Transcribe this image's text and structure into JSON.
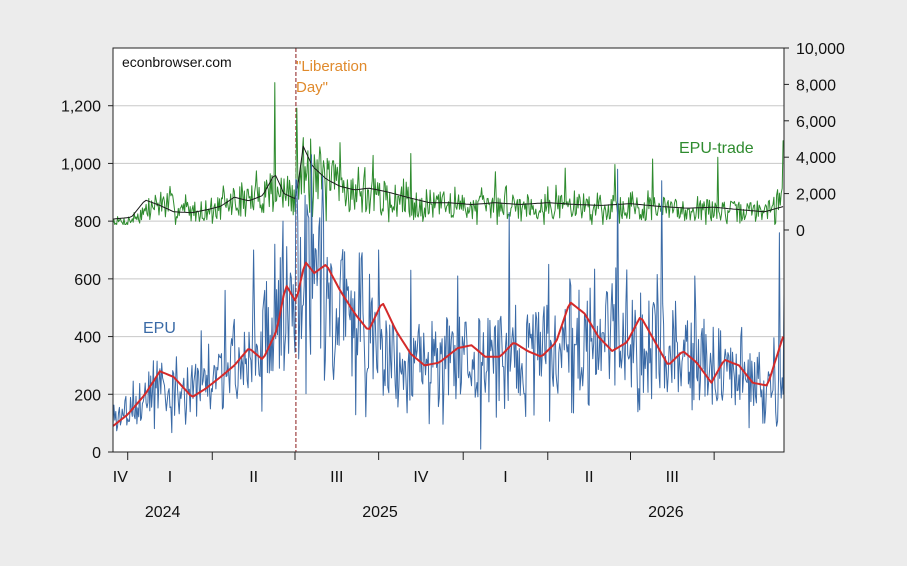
{
  "chart_data": {
    "type": "line",
    "source_label": "econbrowser.com",
    "annotation": {
      "text_line1": "\"Liberation",
      "text_line2": "Day\"",
      "date": "2025-04-02",
      "color": "#e08a2c"
    },
    "left_axis": {
      "ylim": [
        0,
        1400
      ],
      "ticks": [
        "0",
        "200",
        "400",
        "600",
        "800",
        "1,000",
        "1,200"
      ]
    },
    "right_axis": {
      "ylim": [
        -12200,
        10000
      ],
      "ticks": [
        "0",
        "2,000",
        "4,000",
        "6,000",
        "8,000",
        "10,000"
      ]
    },
    "x_axis": {
      "quarters": [
        "IV",
        "I",
        "II",
        "III",
        "IV",
        "I",
        "II",
        "III"
      ],
      "years": [
        "2024",
        "2025",
        "2026"
      ],
      "start": "2024-09-15",
      "end": "2026-09-15"
    },
    "grid": true,
    "series": [
      {
        "name": "EPU",
        "label": "EPU",
        "axis": "left",
        "color": "#3a6aa6",
        "anchors": [
          [
            "2024-09-15",
            120
          ],
          [
            "2024-10-15",
            170
          ],
          [
            "2024-11-01",
            230
          ],
          [
            "2024-11-20",
            200
          ],
          [
            "2024-12-15",
            210
          ],
          [
            "2025-01-01",
            250
          ],
          [
            "2025-01-20",
            300
          ],
          [
            "2025-02-10",
            330
          ],
          [
            "2025-03-01",
            420
          ],
          [
            "2025-03-20",
            500
          ],
          [
            "2025-04-02",
            560
          ],
          [
            "2025-04-15",
            620
          ],
          [
            "2025-05-01",
            580
          ],
          [
            "2025-05-20",
            500
          ],
          [
            "2025-06-15",
            420
          ],
          [
            "2025-07-15",
            330
          ],
          [
            "2025-08-15",
            320
          ],
          [
            "2025-09-15",
            330
          ],
          [
            "2025-10-15",
            330
          ],
          [
            "2025-11-15",
            320
          ],
          [
            "2025-12-15",
            340
          ],
          [
            "2026-01-15",
            370
          ],
          [
            "2026-02-15",
            400
          ],
          [
            "2026-03-15",
            380
          ],
          [
            "2026-04-15",
            370
          ],
          [
            "2026-05-15",
            350
          ],
          [
            "2026-06-15",
            300
          ],
          [
            "2026-07-15",
            300
          ],
          [
            "2026-08-15",
            260
          ],
          [
            "2026-09-01",
            230
          ],
          [
            "2026-09-15",
            250
          ]
        ],
        "spikes": [
          [
            "2024-12-20",
            420
          ],
          [
            "2025-01-15",
            560
          ],
          [
            "2025-02-15",
            700
          ],
          [
            "2025-03-10",
            720
          ],
          [
            "2025-04-03",
            940
          ],
          [
            "2025-04-12",
            890
          ],
          [
            "2025-05-02",
            820
          ],
          [
            "2025-06-10",
            690
          ],
          [
            "2025-07-01",
            700
          ],
          [
            "2025-08-05",
            630
          ],
          [
            "2025-09-25",
            610
          ],
          [
            "2025-11-20",
            830
          ],
          [
            "2026-01-02",
            650
          ],
          [
            "2026-01-25",
            600
          ],
          [
            "2026-03-18",
            980
          ],
          [
            "2026-05-05",
            940
          ],
          [
            "2026-06-10",
            610
          ],
          [
            "2026-09-10",
            760
          ]
        ],
        "dips": [
          [
            "2025-10-20",
            10
          ],
          [
            "2026-08-25",
            100
          ]
        ],
        "end_value": 550
      },
      {
        "name": "EPU moving average",
        "axis": "left",
        "color": "#d42a2a",
        "anchors": [
          [
            "2024-09-15",
            90
          ],
          [
            "2024-10-01",
            130
          ],
          [
            "2024-10-20",
            200
          ],
          [
            "2024-11-05",
            280
          ],
          [
            "2024-11-20",
            260
          ],
          [
            "2024-12-10",
            190
          ],
          [
            "2024-12-25",
            220
          ],
          [
            "2025-01-10",
            260
          ],
          [
            "2025-01-25",
            300
          ],
          [
            "2025-02-10",
            360
          ],
          [
            "2025-02-25",
            320
          ],
          [
            "2025-03-12",
            420
          ],
          [
            "2025-03-22",
            580
          ],
          [
            "2025-04-02",
            520
          ],
          [
            "2025-04-12",
            660
          ],
          [
            "2025-04-22",
            620
          ],
          [
            "2025-05-05",
            650
          ],
          [
            "2025-05-20",
            560
          ],
          [
            "2025-06-05",
            480
          ],
          [
            "2025-06-20",
            420
          ],
          [
            "2025-07-05",
            520
          ],
          [
            "2025-07-20",
            420
          ],
          [
            "2025-08-05",
            340
          ],
          [
            "2025-08-20",
            300
          ],
          [
            "2025-09-05",
            310
          ],
          [
            "2025-09-25",
            360
          ],
          [
            "2025-10-10",
            370
          ],
          [
            "2025-10-25",
            330
          ],
          [
            "2025-11-10",
            330
          ],
          [
            "2025-11-25",
            380
          ],
          [
            "2025-12-10",
            350
          ],
          [
            "2025-12-25",
            330
          ],
          [
            "2026-01-10",
            380
          ],
          [
            "2026-01-25",
            520
          ],
          [
            "2026-02-10",
            480
          ],
          [
            "2026-02-25",
            400
          ],
          [
            "2026-03-12",
            350
          ],
          [
            "2026-03-28",
            380
          ],
          [
            "2026-04-12",
            470
          ],
          [
            "2026-04-28",
            380
          ],
          [
            "2026-05-12",
            300
          ],
          [
            "2026-05-28",
            350
          ],
          [
            "2026-06-12",
            310
          ],
          [
            "2026-06-28",
            240
          ],
          [
            "2026-07-12",
            320
          ],
          [
            "2026-07-28",
            300
          ],
          [
            "2026-08-12",
            240
          ],
          [
            "2026-08-28",
            230
          ],
          [
            "2026-09-15",
            410
          ]
        ]
      },
      {
        "name": "EPU-trade",
        "label": "EPU-trade",
        "axis": "right",
        "color": "#2e8b2e",
        "anchors": [
          [
            "2024-09-15",
            500
          ],
          [
            "2024-10-01",
            450
          ],
          [
            "2024-10-15",
            900
          ],
          [
            "2024-11-05",
            1500
          ],
          [
            "2024-11-25",
            1200
          ],
          [
            "2024-12-15",
            1000
          ],
          [
            "2025-01-05",
            1200
          ],
          [
            "2025-01-25",
            1500
          ],
          [
            "2025-02-15",
            1700
          ],
          [
            "2025-03-05",
            2200
          ],
          [
            "2025-03-20",
            2000
          ],
          [
            "2025-04-02",
            1700
          ],
          [
            "2025-04-12",
            3800
          ],
          [
            "2025-05-01",
            2800
          ],
          [
            "2025-06-01",
            2100
          ],
          [
            "2025-07-01",
            1800
          ],
          [
            "2025-08-01",
            1500
          ],
          [
            "2025-09-01",
            1400
          ],
          [
            "2025-10-01",
            1300
          ],
          [
            "2025-11-01",
            1300
          ],
          [
            "2025-12-01",
            1400
          ],
          [
            "2026-01-01",
            1300
          ],
          [
            "2026-02-01",
            1400
          ],
          [
            "2026-03-01",
            1300
          ],
          [
            "2026-04-01",
            1200
          ],
          [
            "2026-05-01",
            1200
          ],
          [
            "2026-06-01",
            1100
          ],
          [
            "2026-07-01",
            1100
          ],
          [
            "2026-08-01",
            1000
          ],
          [
            "2026-09-01",
            1100
          ],
          [
            "2026-09-15",
            1800
          ]
        ],
        "spikes": [
          [
            "2025-03-10",
            8100
          ],
          [
            "2025-04-03",
            6700
          ],
          [
            "2025-04-18",
            5000
          ],
          [
            "2025-05-20",
            4800
          ],
          [
            "2025-06-25",
            4100
          ],
          [
            "2025-08-05",
            4200
          ],
          [
            "2025-11-05",
            3200
          ],
          [
            "2026-01-20",
            3400
          ],
          [
            "2026-03-15",
            3600
          ],
          [
            "2026-04-25",
            3900
          ],
          [
            "2026-07-05",
            4000
          ],
          [
            "2026-09-14",
            4900
          ]
        ],
        "dips": [],
        "end_value": 4900
      },
      {
        "name": "EPU-trade moving average",
        "axis": "right",
        "color": "#1a1a1a",
        "anchors": [
          [
            "2024-09-15",
            600
          ],
          [
            "2024-10-05",
            700
          ],
          [
            "2024-10-20",
            1650
          ],
          [
            "2024-11-05",
            1350
          ],
          [
            "2024-11-20",
            1000
          ],
          [
            "2024-12-10",
            950
          ],
          [
            "2024-12-25",
            1100
          ],
          [
            "2025-01-10",
            1300
          ],
          [
            "2025-01-25",
            1800
          ],
          [
            "2025-02-10",
            1600
          ],
          [
            "2025-02-25",
            1900
          ],
          [
            "2025-03-10",
            3100
          ],
          [
            "2025-03-20",
            2000
          ],
          [
            "2025-04-02",
            1700
          ],
          [
            "2025-04-10",
            4600
          ],
          [
            "2025-04-20",
            3500
          ],
          [
            "2025-05-05",
            2800
          ],
          [
            "2025-05-20",
            2400
          ],
          [
            "2025-06-05",
            2200
          ],
          [
            "2025-06-20",
            2300
          ],
          [
            "2025-07-10",
            2100
          ],
          [
            "2025-08-01",
            1800
          ],
          [
            "2025-08-25",
            1500
          ],
          [
            "2025-09-15",
            1500
          ],
          [
            "2025-10-10",
            1400
          ],
          [
            "2025-11-05",
            1500
          ],
          [
            "2025-12-01",
            1400
          ],
          [
            "2026-01-01",
            1500
          ],
          [
            "2026-02-01",
            1400
          ],
          [
            "2026-03-01",
            1350
          ],
          [
            "2026-04-01",
            1450
          ],
          [
            "2026-05-01",
            1300
          ],
          [
            "2026-06-01",
            1200
          ],
          [
            "2026-07-01",
            1250
          ],
          [
            "2026-08-01",
            1100
          ],
          [
            "2026-08-25",
            1000
          ],
          [
            "2026-09-15",
            1300
          ]
        ]
      }
    ]
  }
}
